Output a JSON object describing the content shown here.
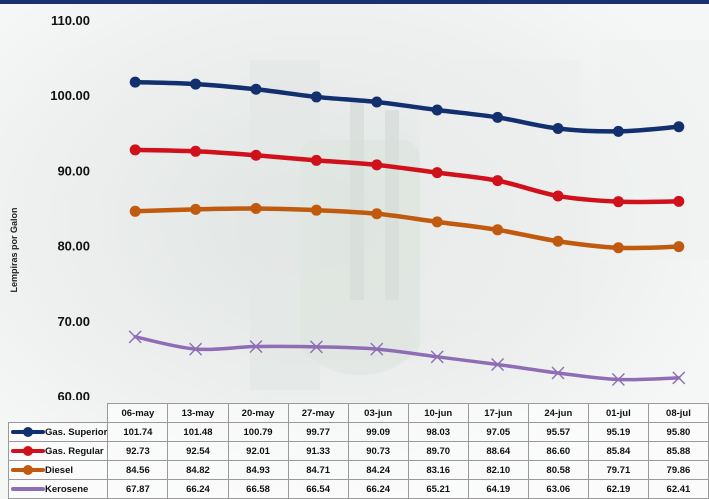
{
  "chart_data": {
    "type": "line",
    "title": "",
    "xlabel": "",
    "ylabel": "Lempiras por Galon",
    "ylim": [
      60,
      110
    ],
    "yticks": [
      "60.00",
      "70.00",
      "80.00",
      "90.00",
      "100.00",
      "110.00"
    ],
    "categories": [
      "06-may",
      "13-may",
      "20-may",
      "27-may",
      "03-jun",
      "10-jun",
      "17-jun",
      "24-jun",
      "01-jul",
      "08-jul"
    ],
    "series": [
      {
        "name": "Gas. Superior",
        "color": "#12306e",
        "marker": "circle",
        "values": [
          101.74,
          101.48,
          100.79,
          99.77,
          99.09,
          98.03,
          97.05,
          95.57,
          95.19,
          95.8
        ],
        "labels": [
          "101.74",
          "101.48",
          "100.79",
          "99.77",
          "99.09",
          "98.03",
          "97.05",
          "95.57",
          "95.19",
          "95.80"
        ]
      },
      {
        "name": "Gas. Regular",
        "color": "#d0111b",
        "marker": "circle",
        "values": [
          92.73,
          92.54,
          92.01,
          91.33,
          90.73,
          89.7,
          88.64,
          86.6,
          85.84,
          85.88
        ],
        "labels": [
          "92.73",
          "92.54",
          "92.01",
          "91.33",
          "90.73",
          "89.70",
          "88.64",
          "86.60",
          "85.84",
          "85.88"
        ]
      },
      {
        "name": "Diesel",
        "color": "#bf5a0e",
        "marker": "circle",
        "values": [
          84.56,
          84.82,
          84.93,
          84.71,
          84.24,
          83.16,
          82.1,
          80.58,
          79.71,
          79.86
        ],
        "labels": [
          "84.56",
          "84.82",
          "84.93",
          "84.71",
          "84.24",
          "83.16",
          "82.10",
          "80.58",
          "79.71",
          "79.86"
        ]
      },
      {
        "name": "Kerosene",
        "color": "#8f6db5",
        "marker": "x",
        "values": [
          67.87,
          66.24,
          66.58,
          66.54,
          66.24,
          65.21,
          64.19,
          63.06,
          62.19,
          62.41
        ],
        "labels": [
          "67.87",
          "66.24",
          "66.58",
          "66.54",
          "66.24",
          "65.21",
          "64.19",
          "63.06",
          "62.19",
          "62.41"
        ]
      }
    ]
  }
}
